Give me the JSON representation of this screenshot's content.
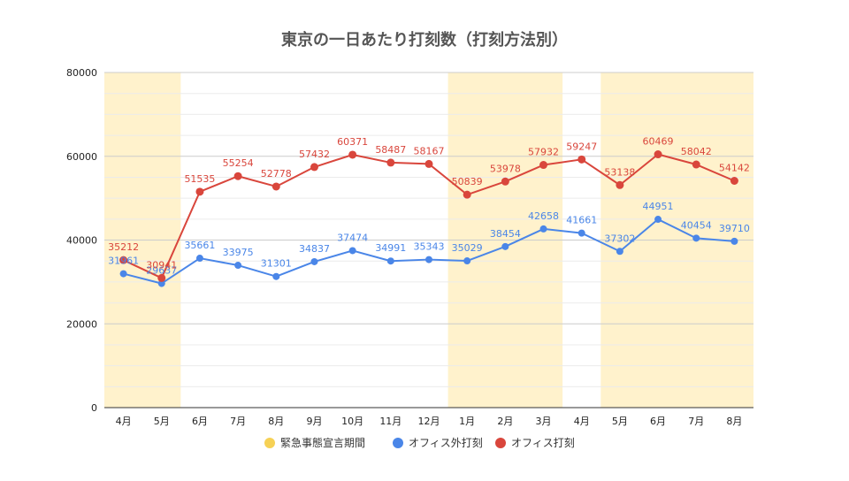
{
  "chart_data": {
    "type": "line",
    "title": "東京の一日あたり打刻数（打刻方法別）",
    "xlabel": "",
    "ylabel": "",
    "categories": [
      "4月",
      "5月",
      "6月",
      "7月",
      "8月",
      "9月",
      "10月",
      "11月",
      "12月",
      "1月",
      "2月",
      "3月",
      "4月",
      "5月",
      "6月",
      "7月",
      "8月"
    ],
    "ylim": [
      0,
      80000
    ],
    "yticks": [
      0,
      20000,
      40000,
      60000,
      80000
    ],
    "grid": true,
    "legend_position": "bottom",
    "shaded_periods": {
      "name": "緊急事態宣言期間",
      "color": "#fff2cc",
      "legend_color": "#f6d155",
      "ranges": [
        [
          0,
          1
        ],
        [
          9,
          11
        ],
        [
          13,
          16
        ]
      ]
    },
    "series": [
      {
        "name": "オフィス外打刻",
        "color": "#4a86e8",
        "values": [
          31961,
          29637,
          35661,
          33975,
          31301,
          34837,
          37474,
          34991,
          35343,
          35029,
          38454,
          42658,
          41661,
          37302,
          44951,
          40454,
          39710
        ],
        "labels": [
          "31961",
          "29637",
          "35661",
          "33975",
          "31301",
          "34837",
          "37474",
          "34991",
          "35343",
          "35029",
          "38454",
          "42658",
          "41661",
          "37302",
          "44951",
          "40454",
          "39710"
        ]
      },
      {
        "name": "オフィス打刻",
        "color": "#d9463c",
        "values": [
          35212,
          30941,
          51535,
          55254,
          52778,
          57432,
          60371,
          58487,
          58167,
          50839,
          53978,
          57932,
          59247,
          53138,
          60469,
          58042,
          54142
        ],
        "labels": [
          "35212",
          "30941",
          "51535",
          "55254",
          "52778",
          "57432",
          "60371",
          "58487",
          "58167",
          "50839",
          "53978",
          "57932",
          "59247",
          "53138",
          "60469",
          "58042",
          "54142"
        ]
      }
    ]
  }
}
